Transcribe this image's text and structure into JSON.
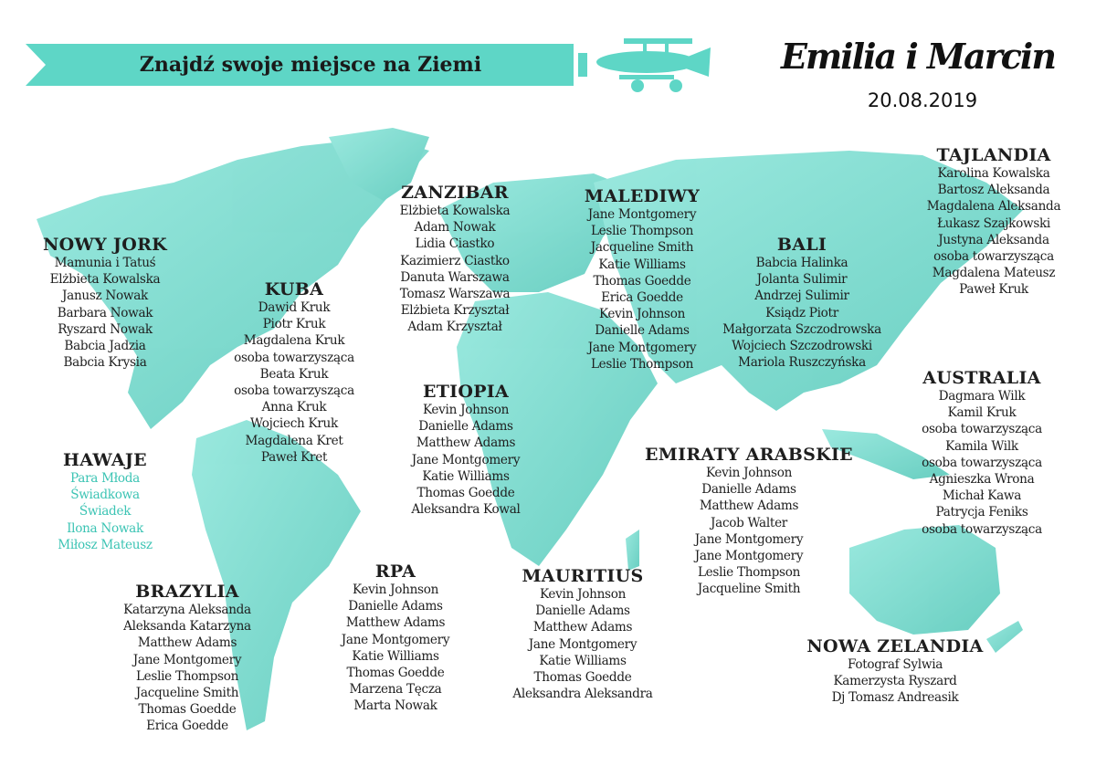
{
  "header": {
    "banner": "Znajdź swoje miejsce na Ziemi",
    "couple": "Emilia i Marcin",
    "date": "20.08.2019"
  },
  "colors": {
    "accent": "#5ed6c6",
    "guest_text": "#1e1e1e",
    "highlight_text": "#3cc4b4"
  },
  "tables": [
    {
      "name": "NOWY JORK",
      "guests": [
        "Mamunia i Tatuś",
        "Elżbieta Kowalska",
        "Janusz Nowak",
        "Barbara Nowak",
        "Ryszard Nowak",
        "Babcia Jadzia",
        "Babcia Krysia"
      ]
    },
    {
      "name": "KUBA",
      "guests": [
        "Dawid Kruk",
        "Piotr Kruk",
        "Magdalena Kruk",
        "osoba towarzysząca",
        "Beata Kruk",
        "osoba towarzysząca",
        "Anna Kruk",
        "Wojciech Kruk",
        "Magdalena Kret",
        "Paweł Kret"
      ]
    },
    {
      "name": "HAWAJE",
      "highlight": true,
      "guests": [
        "Para Młoda",
        "Świadkowa",
        "Świadek",
        "Ilona Nowak",
        "Miłosz Mateusz"
      ]
    },
    {
      "name": "BRAZYLIA",
      "guests": [
        "Katarzyna Aleksanda",
        "Aleksanda Katarzyna",
        "Matthew Adams",
        "Jane Montgomery",
        "Leslie Thompson",
        "Jacqueline Smith",
        "Thomas Goedde",
        "Erica Goedde"
      ]
    },
    {
      "name": "ZANZIBAR",
      "guests": [
        "Elżbieta Kowalska",
        "Adam Nowak",
        "Lidia Ciastko",
        "Kazimierz Ciastko",
        "Danuta Warszawa",
        "Tomasz Warszawa",
        "Elżbieta Krzyształ",
        "Adam Krzyształ"
      ]
    },
    {
      "name": "ETIOPIA",
      "guests": [
        "Kevin Johnson",
        "Danielle Adams",
        "Matthew Adams",
        "Jane Montgomery",
        "Katie Williams",
        "Thomas Goedde",
        "Aleksandra Kowal"
      ]
    },
    {
      "name": "RPA",
      "guests": [
        "Kevin Johnson",
        "Danielle Adams",
        "Matthew Adams",
        "Jane Montgomery",
        "Katie Williams",
        "Thomas Goedde",
        "Marzena Tęcza",
        "Marta Nowak"
      ]
    },
    {
      "name": "MAURITIUS",
      "guests": [
        "Kevin Johnson",
        "Danielle Adams",
        "Matthew Adams",
        "Jane Montgomery",
        "Katie Williams",
        "Thomas Goedde",
        "Aleksandra Aleksandra"
      ]
    },
    {
      "name": "MALEDIWY",
      "guests": [
        "Jane Montgomery",
        "Leslie Thompson",
        "Jacqueline Smith",
        "Katie Williams",
        "Thomas Goedde",
        "Erica Goedde",
        "Kevin Johnson",
        "Danielle Adams",
        "Jane Montgomery",
        "Leslie Thompson"
      ]
    },
    {
      "name": "BALI",
      "guests": [
        "Babcia Halinka",
        "Jolanta Sulimir",
        "Andrzej Sulimir",
        "Ksiądz Piotr",
        "Małgorzata Szczodrowska",
        "Wojciech Szczodrowski",
        "Mariola Ruszczyńska"
      ]
    },
    {
      "name": "EMIRATY ARABSKIE",
      "guests": [
        "Kevin Johnson",
        "Danielle Adams",
        "Matthew Adams",
        "Jacob Walter",
        "Jane Montgomery",
        "Jane Montgomery",
        "Leslie Thompson",
        "Jacqueline Smith"
      ]
    },
    {
      "name": "TAJLANDIA",
      "guests": [
        "Karolina Kowalska",
        "Bartosz Aleksanda",
        "Magdalena Aleksanda",
        "Łukasz Szajkowski",
        "Justyna Aleksanda",
        "osoba towarzysząca",
        "Magdalena Mateusz",
        "Paweł Kruk"
      ]
    },
    {
      "name": "AUSTRALIA",
      "guests": [
        "Dagmara Wilk",
        "Kamil Kruk",
        "osoba towarzysząca",
        "Kamila Wilk",
        "osoba towarzysząca",
        "Agnieszka Wrona",
        "Michał Kawa",
        "Patrycja Feniks",
        "osoba towarzysząca"
      ]
    },
    {
      "name": "NOWA ZELANDIA",
      "guests": [
        "Fotograf Sylwia",
        "Kamerzysta Ryszard",
        "Dj Tomasz Andreasik"
      ]
    }
  ]
}
